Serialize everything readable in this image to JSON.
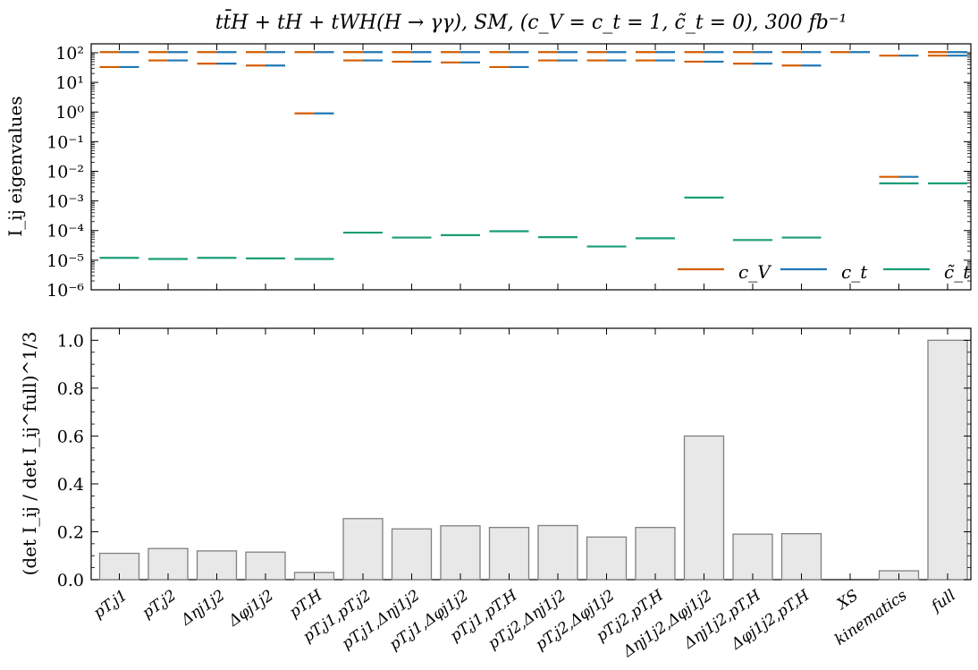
{
  "chart_data": [
    {
      "type": "scatter",
      "title": "tt̄H + tH + tWH(H → γγ), SM, (c_V = c_t = 1, c̃_t = 0), 300 fb⁻¹",
      "ylabel": "I_ij eigenvalues",
      "yscale": "log",
      "ylim": [
        1e-06,
        200
      ],
      "ytick_labels": [
        "10⁻⁶",
        "10⁻⁵",
        "10⁻⁴",
        "10⁻³",
        "10⁻²",
        "10⁻¹",
        "10⁰",
        "10¹",
        "10²"
      ],
      "categories": [
        "pT,j1",
        "pT,j2",
        "Δηj1j2",
        "Δφj1j2",
        "pT,H",
        "pT,j1,pT,j2",
        "pT,j1,Δηj1j2",
        "pT,j1,Δφj1j2",
        "pT,j1,pT,H",
        "pT,j2,Δηj1j2",
        "pT,j2,Δφj1j2",
        "pT,j2,pT,H",
        "Δηj1j2,Δφj1j2",
        "Δηj1j2,pT,H",
        "Δφj1j2,pT,H",
        "XS",
        "kinematics",
        "full"
      ],
      "series": [
        {
          "name": "c_V",
          "color": "#d55e00",
          "values": [
            105,
            105,
            105,
            105,
            105,
            105,
            105,
            105,
            105,
            105,
            105,
            105,
            105,
            105,
            105,
            105,
            80,
            105
          ]
        },
        {
          "name": "c_V",
          "color": "#d55e00",
          "values": [
            33,
            55,
            43,
            37,
            0.9,
            55,
            50,
            47,
            33,
            55,
            55,
            55,
            50,
            43,
            37,
            null,
            0.0065,
            80
          ]
        },
        {
          "name": "c_t",
          "color": "#1f77b4",
          "values": [
            105,
            105,
            105,
            105,
            105,
            105,
            105,
            105,
            105,
            105,
            105,
            105,
            105,
            105,
            105,
            105,
            80,
            105
          ]
        },
        {
          "name": "c_t",
          "color": "#1f77b4",
          "values": [
            33,
            55,
            43,
            37,
            0.9,
            55,
            50,
            47,
            33,
            55,
            55,
            55,
            50,
            43,
            37,
            null,
            0.0065,
            80
          ]
        },
        {
          "name": "c̃_t",
          "color": "#1a9e77",
          "values": [
            1.2e-05,
            1.1e-05,
            1.2e-05,
            1.15e-05,
            1.1e-05,
            8.5e-05,
            5.8e-05,
            7e-05,
            9.5e-05,
            6e-05,
            2.9e-05,
            5.5e-05,
            0.0013,
            4.8e-05,
            5.8e-05,
            null,
            0.0039,
            0.0039
          ]
        }
      ],
      "legend": {
        "placement": "bottom-right",
        "entries": [
          "c_V",
          "c_t",
          "c̃_t"
        ]
      },
      "grid": false
    },
    {
      "type": "bar",
      "ylabel": "(det  I_ij / det  I_ij^full)^1/3",
      "ylim": [
        0,
        1.05
      ],
      "yticks": [
        0.0,
        0.2,
        0.4,
        0.6,
        0.8,
        1.0
      ],
      "ytick_labels": [
        "0.0",
        "0.2",
        "0.4",
        "0.6",
        "0.8",
        "1.0"
      ],
      "categories": [
        "pT,j1",
        "pT,j2",
        "Δηj1j2",
        "Δφj1j2",
        "pT,H",
        "pT,j1,pT,j2",
        "pT,j1,Δηj1j2",
        "pT,j1,Δφj1j2",
        "pT,j1,pT,H",
        "pT,j2,Δηj1j2",
        "pT,j2,Δφj1j2",
        "pT,j2,pT,H",
        "Δηj1j2,Δφj1j2",
        "Δηj1j2,pT,H",
        "Δφj1j2,pT,H",
        "XS",
        "kinematics",
        "full"
      ],
      "values": [
        0.11,
        0.13,
        0.12,
        0.115,
        0.03,
        0.255,
        0.212,
        0.225,
        0.218,
        0.226,
        0.178,
        0.218,
        0.6,
        0.19,
        0.192,
        0.0,
        0.037,
        1.0
      ],
      "bar_color": "#e8e8e8",
      "edge_color": "#808080"
    }
  ]
}
